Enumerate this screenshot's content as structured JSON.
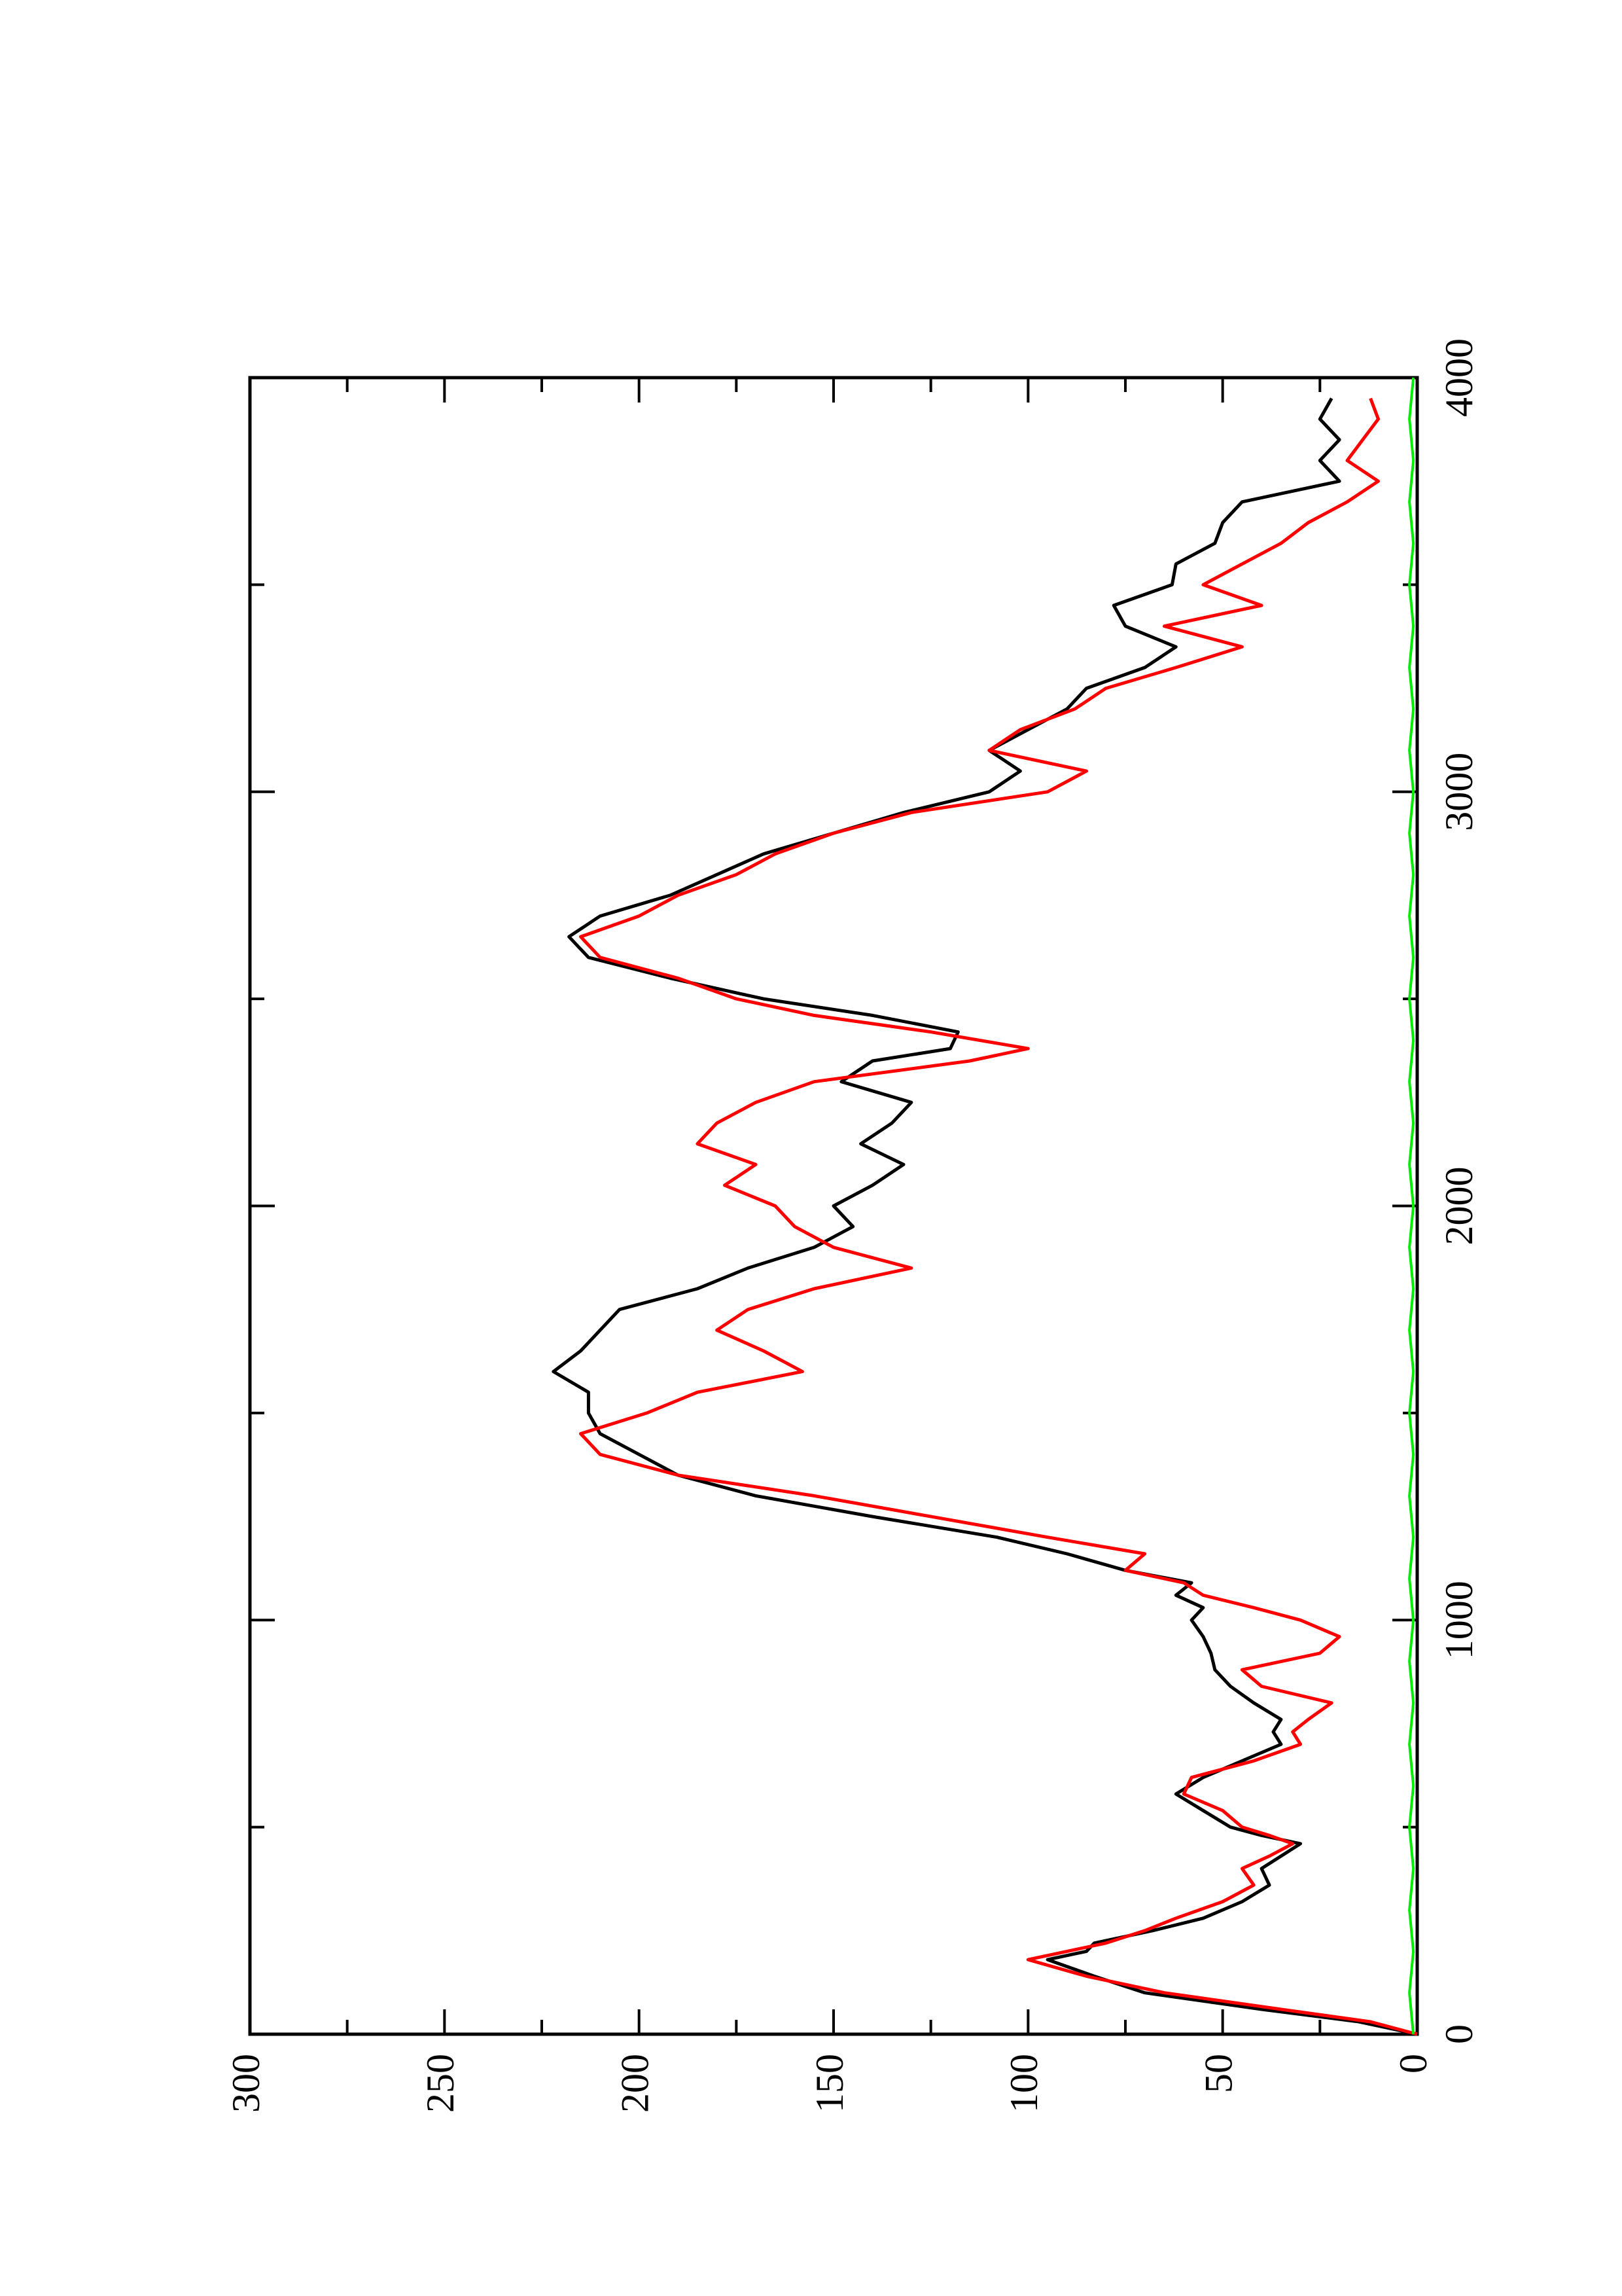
{
  "chart_data": {
    "type": "line",
    "orientation": "rotated 90° counter-clockwise (x axis runs bottom-to-top along the right edge, y axis runs left-to-right along the bottom)",
    "title": "",
    "xlabel": "",
    "ylabel": "",
    "xlim": [
      0,
      4000
    ],
    "ylim": [
      0,
      300
    ],
    "x_ticks": [
      0,
      1000,
      2000,
      3000,
      4000
    ],
    "x_tick_labels": [
      "0",
      "1000",
      "2000",
      "3000",
      "4000"
    ],
    "y_ticks": [
      0,
      50,
      100,
      150,
      200,
      250,
      300
    ],
    "y_tick_labels": [
      "0",
      "50",
      "100",
      "150",
      "200",
      "250",
      "300"
    ],
    "grid": false,
    "legend": "none",
    "series": [
      {
        "color": "#000000",
        "x": [
          0,
          30,
          60,
          100,
          140,
          180,
          200,
          220,
          250,
          280,
          320,
          360,
          400,
          430,
          460,
          480,
          500,
          540,
          580,
          620,
          660,
          700,
          730,
          760,
          800,
          840,
          880,
          920,
          960,
          1000,
          1030,
          1060,
          1090,
          1120,
          1160,
          1200,
          1250,
          1300,
          1350,
          1400,
          1450,
          1500,
          1550,
          1600,
          1650,
          1700,
          1750,
          1800,
          1850,
          1900,
          1950,
          2000,
          2050,
          2100,
          2150,
          2200,
          2250,
          2300,
          2350,
          2380,
          2420,
          2460,
          2500,
          2550,
          2600,
          2650,
          2700,
          2750,
          2800,
          2850,
          2900,
          2950,
          3000,
          3050,
          3100,
          3150,
          3200,
          3250,
          3300,
          3350,
          3400,
          3450,
          3500,
          3550,
          3600,
          3650,
          3700,
          3750,
          3800,
          3850,
          3900,
          3950
        ],
        "y": [
          0,
          15,
          40,
          70,
          83,
          95,
          85,
          83,
          68,
          55,
          45,
          38,
          40,
          35,
          30,
          40,
          48,
          55,
          62,
          55,
          45,
          35,
          37,
          35,
          42,
          48,
          52,
          53,
          55,
          58,
          55,
          62,
          58,
          75,
          90,
          108,
          140,
          170,
          190,
          200,
          210,
          213,
          213,
          222,
          215,
          210,
          205,
          185,
          172,
          155,
          145,
          150,
          140,
          132,
          143,
          135,
          130,
          148,
          140,
          120,
          118,
          140,
          168,
          192,
          213,
          218,
          210,
          192,
          180,
          168,
          150,
          132,
          110,
          102,
          110,
          100,
          90,
          85,
          70,
          62,
          75,
          78,
          63,
          62,
          52,
          50,
          45,
          20,
          25,
          20,
          25,
          22
        ]
      },
      {
        "color": "#ff0000",
        "x": [
          0,
          30,
          60,
          100,
          140,
          180,
          200,
          220,
          250,
          280,
          320,
          360,
          400,
          430,
          460,
          480,
          500,
          540,
          580,
          620,
          660,
          700,
          730,
          760,
          800,
          840,
          880,
          920,
          960,
          1000,
          1030,
          1060,
          1090,
          1120,
          1160,
          1200,
          1250,
          1300,
          1350,
          1400,
          1450,
          1500,
          1550,
          1600,
          1650,
          1700,
          1750,
          1800,
          1850,
          1900,
          1950,
          2000,
          2050,
          2100,
          2150,
          2200,
          2250,
          2300,
          2350,
          2380,
          2420,
          2460,
          2500,
          2550,
          2600,
          2650,
          2700,
          2750,
          2800,
          2850,
          2900,
          2950,
          3000,
          3050,
          3100,
          3150,
          3200,
          3250,
          3300,
          3350,
          3400,
          3450,
          3500,
          3550,
          3600,
          3650,
          3700,
          3750,
          3800,
          3850,
          3900,
          3950
        ],
        "y": [
          0,
          12,
          35,
          65,
          85,
          100,
          90,
          80,
          70,
          62,
          50,
          42,
          45,
          38,
          32,
          38,
          45,
          50,
          60,
          58,
          42,
          30,
          32,
          28,
          22,
          40,
          45,
          25,
          20,
          30,
          42,
          55,
          60,
          75,
          70,
          95,
          125,
          155,
          190,
          210,
          215,
          198,
          185,
          158,
          168,
          180,
          172,
          155,
          130,
          150,
          160,
          165,
          178,
          170,
          185,
          180,
          170,
          155,
          115,
          100,
          125,
          155,
          175,
          190,
          210,
          215,
          200,
          190,
          175,
          165,
          150,
          130,
          95,
          85,
          110,
          102,
          88,
          80,
          62,
          45,
          65,
          40,
          55,
          45,
          35,
          28,
          18,
          10,
          18,
          14,
          10,
          12
        ]
      },
      {
        "color": "#00ee00",
        "x": [
          0,
          100,
          200,
          300,
          400,
          500,
          600,
          700,
          800,
          900,
          1000,
          1100,
          1200,
          1300,
          1400,
          1500,
          1600,
          1700,
          1800,
          1900,
          2000,
          2100,
          2200,
          2300,
          2400,
          2500,
          2600,
          2700,
          2800,
          2900,
          3000,
          3100,
          3200,
          3300,
          3400,
          3500,
          3600,
          3700,
          3800,
          3900,
          4000
        ],
        "y": [
          1,
          2,
          1,
          2,
          1,
          2,
          1,
          2,
          1,
          2,
          1,
          2,
          1,
          2,
          1,
          2,
          1,
          2,
          1,
          2,
          1,
          2,
          1,
          2,
          1,
          2,
          1,
          2,
          1,
          2,
          1,
          2,
          1,
          2,
          1,
          2,
          1,
          2,
          1,
          2,
          1
        ]
      }
    ]
  }
}
